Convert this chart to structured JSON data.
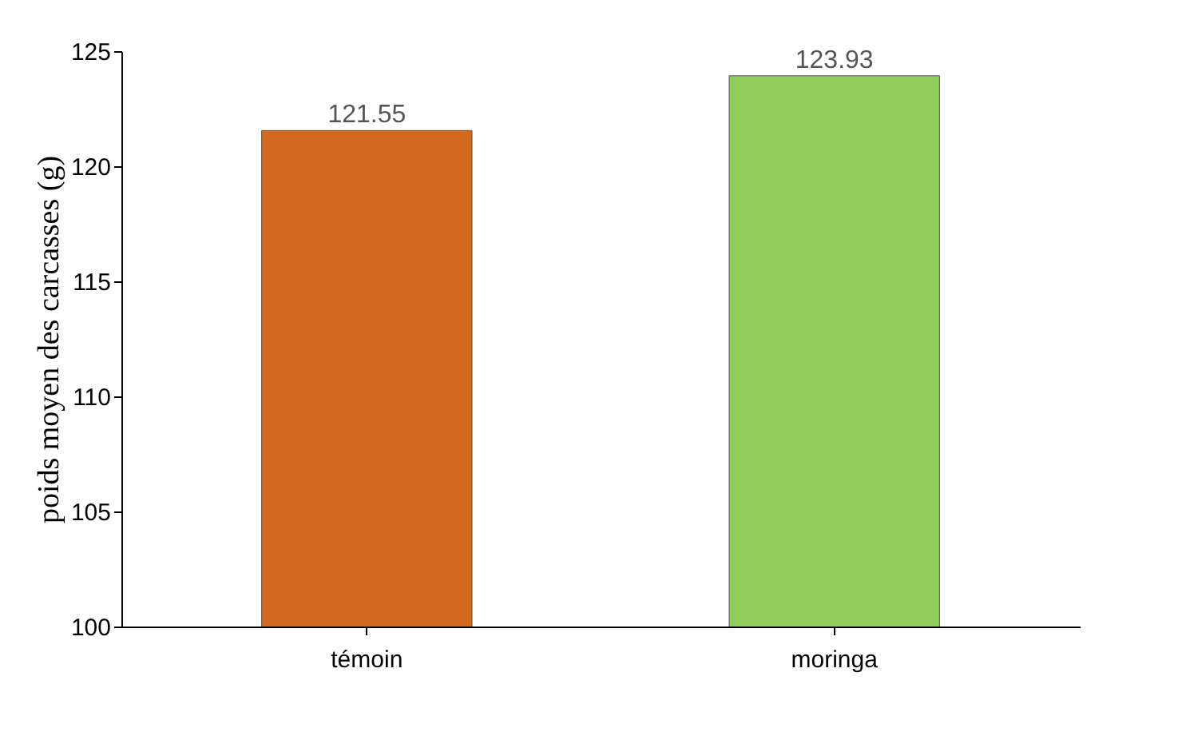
{
  "chart_data": {
    "type": "bar",
    "ylabel": "poids moyen des carcasses (g)",
    "categories": [
      "témoin",
      "moringa"
    ],
    "values": [
      121.55,
      123.93
    ],
    "colors": [
      "#d2691e",
      "#8fcc5a"
    ],
    "ylim": [
      100,
      125
    ],
    "yticks": [
      100,
      105,
      110,
      115,
      120,
      125
    ],
    "grid": false,
    "data_labels": true
  }
}
